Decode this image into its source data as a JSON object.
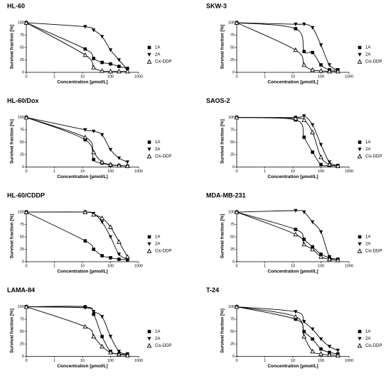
{
  "chart_data": [
    {
      "type": "line",
      "title": "HL-60",
      "xlabel": "Concentration [µmol/L]",
      "ylabel": "Survival fraction [%]",
      "log_x": true,
      "x": [
        0.1,
        12.5,
        25,
        50,
        100,
        200,
        400
      ],
      "xlim": [
        0.1,
        1000
      ],
      "xticks": [
        {
          "value": 0.1,
          "label": "0"
        },
        1,
        10,
        100,
        1000
      ],
      "ylim": [
        0,
        103
      ],
      "yticks": [
        0,
        25,
        50,
        75,
        100
      ],
      "series": [
        {
          "name": "1A",
          "color": "#000000",
          "marker": "square",
          "values": [
            100,
            47,
            28,
            20,
            17,
            12,
            8
          ]
        },
        {
          "name": "2A",
          "color": "#000000",
          "marker": "triangle-down",
          "values": [
            100,
            92,
            85,
            72,
            45,
            25,
            5
          ]
        },
        {
          "name": "Cis-DDP",
          "color": "#000000",
          "marker": "triangle-up-open",
          "values": [
            100,
            35,
            10,
            3,
            2,
            2,
            2
          ]
        }
      ]
    },
    {
      "type": "line",
      "title": "SKW-3",
      "xlabel": "Concentration [µmol/L]",
      "ylabel": "Survival fraction [%]",
      "log_x": true,
      "x": [
        0.1,
        12.5,
        25,
        50,
        100,
        200,
        400
      ],
      "xlim": [
        0.1,
        1000
      ],
      "xticks": [
        {
          "value": 0.1,
          "label": "0"
        },
        1,
        10,
        100,
        1000
      ],
      "ylim": [
        0,
        103
      ],
      "yticks": [
        0,
        25,
        50,
        75,
        100
      ],
      "series": [
        {
          "name": "1A",
          "color": "#000000",
          "marker": "square",
          "values": [
            100,
            88,
            42,
            40,
            15,
            5,
            5
          ]
        },
        {
          "name": "2A",
          "color": "#000000",
          "marker": "triangle-down",
          "values": [
            100,
            97,
            97,
            90,
            55,
            15,
            5
          ]
        },
        {
          "name": "Cis-DDP",
          "color": "#000000",
          "marker": "triangle-up-open",
          "values": [
            100,
            45,
            15,
            5,
            3,
            2,
            2
          ]
        }
      ]
    },
    {
      "type": "line",
      "title": "HL-60/Dox",
      "xlabel": "Concentration [µmol/L]",
      "ylabel": "Survival fraction [%]",
      "log_x": true,
      "x": [
        0.1,
        12.5,
        25,
        50,
        100,
        200,
        400
      ],
      "xlim": [
        0.1,
        1000
      ],
      "xticks": [
        {
          "value": 0.1,
          "label": "0"
        },
        1,
        10,
        100,
        1000
      ],
      "ylim": [
        0,
        103
      ],
      "yticks": [
        0,
        25,
        50,
        75,
        100
      ],
      "series": [
        {
          "name": "1A",
          "color": "#000000",
          "marker": "square",
          "values": [
            100,
            55,
            15,
            8,
            4,
            3,
            2
          ]
        },
        {
          "name": "2A",
          "color": "#000000",
          "marker": "triangle-down",
          "values": [
            100,
            75,
            72,
            65,
            35,
            18,
            10
          ]
        },
        {
          "name": "Cis-DDP",
          "color": "#000000",
          "marker": "triangle-up-open",
          "values": [
            100,
            60,
            30,
            10,
            5,
            3,
            2
          ]
        }
      ]
    },
    {
      "type": "line",
      "title": "SAOS-2",
      "xlabel": "Concentration [µmol/L]",
      "ylabel": "Survival fraction [%]",
      "log_x": true,
      "x": [
        0.1,
        12.5,
        25,
        50,
        100,
        200,
        400
      ],
      "xlim": [
        0.1,
        1000
      ],
      "xticks": [
        {
          "value": 0.1,
          "label": "0"
        },
        1,
        10,
        100,
        1000
      ],
      "ylim": [
        0,
        103
      ],
      "yticks": [
        0,
        25,
        50,
        75,
        100
      ],
      "series": [
        {
          "name": "1A",
          "color": "#000000",
          "marker": "square",
          "values": [
            100,
            95,
            60,
            30,
            5,
            3,
            2
          ]
        },
        {
          "name": "2A",
          "color": "#000000",
          "marker": "triangle-down",
          "values": [
            100,
            100,
            103,
            85,
            45,
            10,
            3
          ]
        },
        {
          "name": "Cis-DDP",
          "color": "#000000",
          "marker": "triangle-up-open",
          "values": [
            100,
            98,
            95,
            70,
            20,
            5,
            2
          ]
        }
      ]
    },
    {
      "type": "line",
      "title": "HL-60/CDDP",
      "xlabel": "Concentration [µmol/L]",
      "ylabel": "Survival fraction [%]",
      "log_x": true,
      "x": [
        0.1,
        12.5,
        25,
        50,
        100,
        200,
        400
      ],
      "xlim": [
        0.1,
        1000
      ],
      "xticks": [
        {
          "value": 0.1,
          "label": "0"
        },
        1,
        10,
        100,
        1000
      ],
      "ylim": [
        0,
        103
      ],
      "yticks": [
        0,
        25,
        50,
        75,
        100
      ],
      "series": [
        {
          "name": "1A",
          "color": "#000000",
          "marker": "square",
          "values": [
            100,
            42,
            25,
            12,
            8,
            5,
            4
          ]
        },
        {
          "name": "2A",
          "color": "#000000",
          "marker": "triangle-down",
          "values": [
            100,
            100,
            97,
            80,
            50,
            15,
            5
          ]
        },
        {
          "name": "Cis-DDP",
          "color": "#000000",
          "marker": "triangle-up-open",
          "values": [
            100,
            100,
            95,
            88,
            70,
            40,
            10
          ]
        }
      ]
    },
    {
      "type": "line",
      "title": "MDA-MB-231",
      "xlabel": "Concentration [µmol/L]",
      "ylabel": "Survival fraction [%]",
      "log_x": true,
      "x": [
        0.1,
        12.5,
        25,
        50,
        100,
        200,
        400
      ],
      "xlim": [
        0.1,
        1000
      ],
      "xticks": [
        {
          "value": 0.1,
          "label": "0"
        },
        1,
        10,
        100,
        1000
      ],
      "ylim": [
        0,
        103
      ],
      "yticks": [
        0,
        25,
        50,
        75,
        100
      ],
      "series": [
        {
          "name": "1A",
          "color": "#000000",
          "marker": "square",
          "values": [
            100,
            65,
            45,
            30,
            15,
            8,
            5
          ]
        },
        {
          "name": "2A",
          "color": "#000000",
          "marker": "triangle-down",
          "values": [
            100,
            103,
            100,
            80,
            60,
            10,
            3
          ]
        },
        {
          "name": "Cis-DDP",
          "color": "#000000",
          "marker": "triangle-up-open",
          "values": [
            100,
            55,
            35,
            25,
            10,
            5,
            3
          ]
        }
      ]
    },
    {
      "type": "line",
      "title": "LAMA-84",
      "xlabel": "Concentration [µmol/L]",
      "ylabel": "Survival fraction [%]",
      "log_x": true,
      "x": [
        0.1,
        12.5,
        25,
        50,
        100,
        200,
        400
      ],
      "xlim": [
        0.1,
        1000
      ],
      "xticks": [
        {
          "value": 0.1,
          "label": "0"
        },
        1,
        10,
        100,
        1000
      ],
      "ylim": [
        0,
        103
      ],
      "yticks": [
        0,
        25,
        50,
        75,
        100
      ],
      "series": [
        {
          "name": "1A",
          "color": "#000000",
          "marker": "square",
          "values": [
            100,
            100,
            85,
            40,
            10,
            5,
            3
          ]
        },
        {
          "name": "2A",
          "color": "#000000",
          "marker": "triangle-down",
          "values": [
            100,
            98,
            90,
            80,
            40,
            10,
            5
          ]
        },
        {
          "name": "Cis-DDP",
          "color": "#000000",
          "marker": "triangle-up-open",
          "values": [
            100,
            60,
            40,
            20,
            8,
            4,
            2
          ]
        }
      ]
    },
    {
      "type": "line",
      "title": "T-24",
      "xlabel": "Concentration [µmol/L]",
      "ylabel": "Survival fraction [%]",
      "log_x": true,
      "x": [
        0.1,
        12.5,
        25,
        50,
        100,
        200,
        400
      ],
      "xlim": [
        0.1,
        1000
      ],
      "xticks": [
        {
          "value": 0.1,
          "label": "0"
        },
        1,
        10,
        100,
        1000
      ],
      "ylim": [
        0,
        103
      ],
      "yticks": [
        0,
        25,
        50,
        75,
        100
      ],
      "series": [
        {
          "name": "1A",
          "color": "#000000",
          "marker": "square",
          "values": [
            100,
            75,
            50,
            35,
            15,
            8,
            5
          ]
        },
        {
          "name": "2A",
          "color": "#000000",
          "marker": "triangle-down",
          "values": [
            100,
            90,
            70,
            55,
            35,
            20,
            12
          ]
        },
        {
          "name": "Cis-DDP",
          "color": "#000000",
          "marker": "triangle-up-open",
          "values": [
            100,
            80,
            40,
            10,
            5,
            3,
            2
          ]
        }
      ]
    }
  ]
}
